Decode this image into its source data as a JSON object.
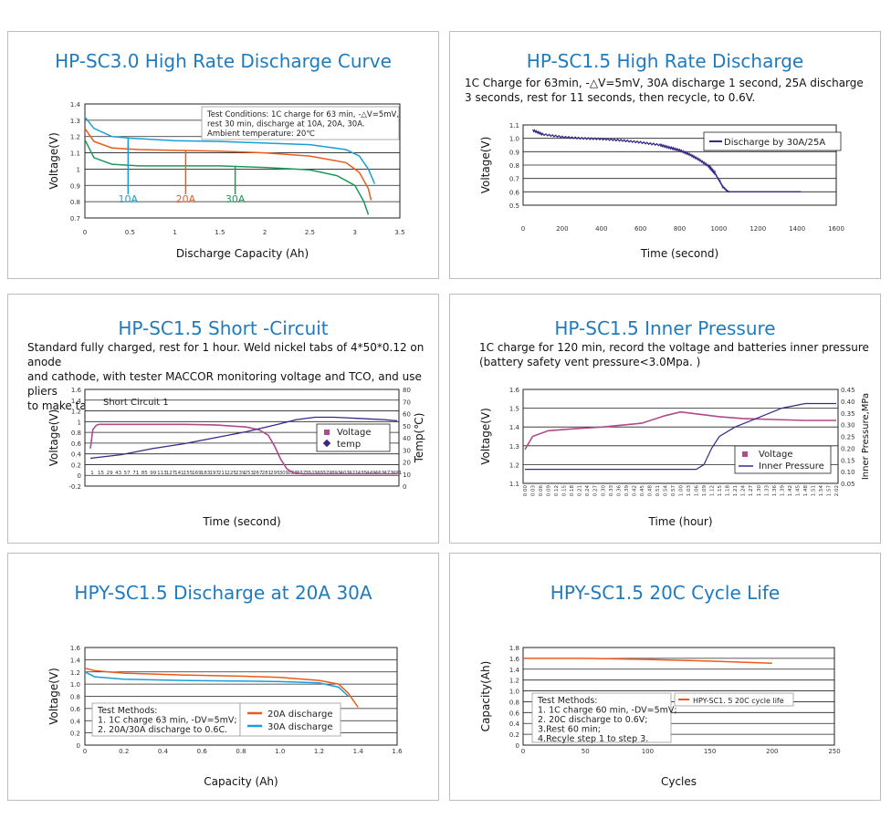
{
  "panels": [
    {
      "title": "HP-SC3.0 High Rate Discharge Curve",
      "description": ""
    },
    {
      "title": "HP-SC1.5 High Rate Discharge",
      "description": "1C Charge for 63min, -△V=5mV, 30A discharge 1 second, 25A discharge\n 3 seconds, rest for 11 seconds, then recycle, to 0.6V."
    },
    {
      "title": "HP-SC1.5 Short -Circuit",
      "description": "Standard fully charged, rest for 1 hour. Weld nickel tabs of 4*50*0.12 on anode\nand cathode, with tester MACCOR monitoring voltage and TCO, and use pliers\nto make  tab locked,shortcircuit the battery."
    },
    {
      "title": "HP-SC1.5 Inner Pressure",
      "description": "1C charge for 120 min, record the voltage and batteries inner pressure\n(battery safety vent pressure<3.0Mpa. )"
    },
    {
      "title": "HPY-SC1.5 Discharge at 20A 30A",
      "description": ""
    },
    {
      "title": "HPY-SC1.5 20C Cycle Life",
      "description": ""
    }
  ],
  "chart_data": [
    {
      "type": "line",
      "xlabel": "Discharge Capacity (Ah)",
      "ylabel": "Voltage(V)",
      "xlim": [
        0,
        3.5
      ],
      "ylim": [
        0.7,
        1.4
      ],
      "xticks": [
        "0",
        "0.5",
        "1",
        "1.5",
        "2",
        "2.5",
        "3",
        "3.5"
      ],
      "yticks": [
        "0.7",
        "0.8",
        "0.9",
        "1",
        "1.1",
        "1.2",
        "1.3",
        "1.4"
      ],
      "annotation": "Test Conditions: 1C charge for 63 min, -△V=5mV,\nrest 30 min, discharge at 10A, 20A, 30A.\nAmbient temperature: 20℃",
      "colors": {
        "10A": "#1a9ed8",
        "20A": "#ea5b1a",
        "30A": "#1a9a5a"
      },
      "series": [
        {
          "name": "10A",
          "x": [
            0,
            0.1,
            0.3,
            0.5,
            1.0,
            1.5,
            2.0,
            2.5,
            2.9,
            3.05,
            3.15,
            3.22
          ],
          "y": [
            1.32,
            1.25,
            1.2,
            1.19,
            1.175,
            1.17,
            1.16,
            1.15,
            1.12,
            1.08,
            1.0,
            0.91
          ]
        },
        {
          "name": "20A",
          "x": [
            0,
            0.1,
            0.3,
            0.6,
            1.0,
            1.5,
            2.0,
            2.5,
            2.9,
            3.05,
            3.15,
            3.18
          ],
          "y": [
            1.25,
            1.17,
            1.13,
            1.12,
            1.115,
            1.11,
            1.1,
            1.08,
            1.04,
            0.98,
            0.88,
            0.81
          ]
        },
        {
          "name": "30A",
          "x": [
            0,
            0.1,
            0.3,
            0.6,
            1.0,
            1.5,
            2.0,
            2.5,
            2.8,
            3.0,
            3.1,
            3.15
          ],
          "y": [
            1.18,
            1.07,
            1.03,
            1.02,
            1.02,
            1.02,
            1.01,
            0.995,
            0.96,
            0.9,
            0.8,
            0.72
          ]
        }
      ],
      "series_labels": [
        "10A",
        "20A",
        "30A"
      ]
    },
    {
      "type": "line",
      "xlabel": "Time (second)",
      "ylabel": "Voltage(V)",
      "xlim": [
        0,
        1600
      ],
      "ylim": [
        0.5,
        1.1
      ],
      "xticks": [
        "0",
        "200",
        "400",
        "600",
        "800",
        "1000",
        "1200",
        "1400",
        "1600"
      ],
      "yticks": [
        "0.5",
        "0.6",
        "0.7",
        "0.8",
        "0.9",
        "1.0",
        "1.1"
      ],
      "colors": {
        "line": "#3a2785"
      },
      "series": [
        {
          "name": "Discharge by 30A/25A",
          "x": [
            50,
            100,
            200,
            300,
            400,
            500,
            600,
            700,
            750,
            800,
            850,
            900,
            950,
            980,
            1000,
            1020,
            1040,
            1050,
            1100,
            1200,
            1300,
            1420
          ],
          "y": [
            1.06,
            1.03,
            1.01,
            1.0,
            0.995,
            0.985,
            0.97,
            0.95,
            0.93,
            0.91,
            0.88,
            0.84,
            0.79,
            0.74,
            0.69,
            0.64,
            0.61,
            0.6,
            0.6,
            0.6,
            0.6,
            0.6
          ]
        }
      ]
    },
    {
      "type": "line",
      "xlabel": "Time (second)",
      "ylabel": "Voltage(V)",
      "ylabel2": "Temp(℃)",
      "annotation": "Short  Circuit  1",
      "ylim": [
        -0.2,
        1.6
      ],
      "ylim2": [
        0,
        80
      ],
      "yticks": [
        "-0.2",
        "0",
        "0.2",
        "0.4",
        "0.6",
        "0.8",
        "1",
        "1.2",
        "1.4",
        "1.6"
      ],
      "yticks2": [
        "0",
        "10",
        "20",
        "30",
        "40",
        "50",
        "60",
        "70",
        "80"
      ],
      "xticks": [
        "1",
        "15",
        "29",
        "43",
        "57",
        "71",
        "85",
        "99",
        "113",
        "127",
        "141",
        "155",
        "169",
        "183",
        "197",
        "211",
        "225",
        "239",
        "253",
        "267",
        "281",
        "295",
        "309",
        "323",
        "337",
        "351",
        "365",
        "379",
        "393",
        "407",
        "421",
        "435",
        "449",
        "463",
        "477",
        "491"
      ],
      "colors": {
        "Voltage": "#b04a8a",
        "temp": "#3a2785"
      },
      "series": [
        {
          "name": "Voltage",
          "x": [
            1,
            5,
            10,
            15,
            50,
            100,
            150,
            200,
            250,
            270,
            285,
            295,
            305,
            315,
            325,
            340,
            360,
            400,
            450,
            491
          ],
          "y": [
            0.5,
            0.85,
            0.93,
            0.95,
            0.95,
            0.95,
            0.95,
            0.94,
            0.9,
            0.85,
            0.75,
            0.55,
            0.3,
            0.12,
            0.05,
            0.03,
            0.03,
            0.03,
            0.03,
            0.03
          ]
        },
        {
          "name": "temp",
          "x": [
            1,
            50,
            100,
            150,
            200,
            250,
            300,
            330,
            360,
            390,
            430,
            470,
            491
          ],
          "y": [
            23,
            26,
            31,
            35,
            40,
            45,
            51,
            55,
            57,
            57,
            56,
            55,
            54
          ]
        }
      ]
    },
    {
      "type": "line",
      "xlabel": "Time (hour)",
      "ylabel": "Voltage(V)",
      "ylabel2": "Inner Pressure,MPa",
      "ylim": [
        1.1,
        1.6
      ],
      "ylim2": [
        0.05,
        0.45
      ],
      "yticks": [
        "1.1",
        "1.2",
        "1.3",
        "1.4",
        "1.5",
        "1.6"
      ],
      "yticks2": [
        "0.05",
        "0.10",
        "0.15",
        "0.20",
        "0.25",
        "0.30",
        "0.35",
        "0.40",
        "0.45"
      ],
      "xticks": [
        "0.00",
        "0.03",
        "0.06",
        "0.09",
        "0.12",
        "0.15",
        "0.18",
        "0.21",
        "0.24",
        "0.27",
        "0.30",
        "0.33",
        "0.36",
        "0.39",
        "0.42",
        "0.45",
        "0.48",
        "0.51",
        "0.54",
        "0.57",
        "1.00",
        "1.03",
        "1.06",
        "1.09",
        "1.12",
        "1.15",
        "1.18",
        "1.21",
        "1.24",
        "1.27",
        "1.30",
        "1.33",
        "1.36",
        "1.39",
        "1.42",
        "1.45",
        "1.48",
        "1.51",
        "1.54",
        "1.57",
        "2.02"
      ],
      "colors": {
        "Voltage": "#b04a8a",
        "Inner Pressure": "#3a2785"
      },
      "series": [
        {
          "name": "Voltage",
          "x": [
            0,
            1,
            3,
            6,
            10,
            15,
            18,
            20,
            22,
            25,
            28,
            32,
            36,
            40
          ],
          "y": [
            1.28,
            1.35,
            1.38,
            1.39,
            1.4,
            1.42,
            1.46,
            1.48,
            1.47,
            1.455,
            1.445,
            1.44,
            1.435,
            1.435
          ]
        },
        {
          "name": "Inner Pressure",
          "x": [
            0,
            5,
            10,
            15,
            20,
            22,
            23,
            24,
            25,
            27,
            30,
            33,
            36,
            38,
            40
          ],
          "y": [
            0.11,
            0.11,
            0.11,
            0.11,
            0.11,
            0.11,
            0.13,
            0.2,
            0.25,
            0.29,
            0.33,
            0.37,
            0.39,
            0.39,
            0.39
          ]
        }
      ]
    },
    {
      "type": "line",
      "xlabel": "Capacity (Ah)",
      "ylabel": "Voltage(V)",
      "xlim": [
        0,
        1.6
      ],
      "ylim": [
        0,
        1.6
      ],
      "xticks": [
        "0",
        "0.2",
        "0.4",
        "0.6",
        "0.8",
        "1.0",
        "1.2",
        "1.4",
        "1.6"
      ],
      "yticks": [
        "0",
        "0.2",
        "0.4",
        "0.6",
        "0.8",
        "1.0",
        "1.2",
        "1.4",
        "1.6"
      ],
      "annotation": "Test Methods:\n1. 1C charge 63 min, -DV=5mV;\n2. 20A/30A discharge to 0.6C.",
      "colors": {
        "20A discharge": "#ea5b1a",
        "30A discharge": "#1a9ed8"
      },
      "series": [
        {
          "name": "20A discharge",
          "x": [
            0,
            0.05,
            0.2,
            0.5,
            0.8,
            1.0,
            1.2,
            1.3,
            1.35,
            1.4
          ],
          "y": [
            1.26,
            1.22,
            1.18,
            1.15,
            1.13,
            1.11,
            1.06,
            1.0,
            0.85,
            0.62
          ]
        },
        {
          "name": "30A discharge",
          "x": [
            0,
            0.05,
            0.2,
            0.5,
            0.8,
            1.0,
            1.2,
            1.3,
            1.35
          ],
          "y": [
            1.2,
            1.12,
            1.08,
            1.06,
            1.05,
            1.04,
            1.02,
            0.95,
            0.8
          ]
        }
      ]
    },
    {
      "type": "line",
      "xlabel": "Cycles",
      "ylabel": "Capacity(Ah)",
      "xlim": [
        0,
        250
      ],
      "ylim": [
        0,
        1.8
      ],
      "xticks": [
        "0",
        "50",
        "100",
        "150",
        "200",
        "250"
      ],
      "yticks": [
        "0",
        "0.2",
        "0.4",
        "0.6",
        "0.8",
        "1.0",
        "1.2",
        "1.4",
        "1.6",
        "1.8"
      ],
      "annotation": "Test Methods:\n1. 1C charge 60 min, -DV=5mV;\n2. 20C discharge  to 0.6V;\n3.Rest 60 min;\n4.Recyle step 1 to step 3.",
      "colors": {
        "line": "#ea5b1a"
      },
      "series": [
        {
          "name": "HPY-SC1. 5 20C cycle life",
          "x": [
            0,
            50,
            100,
            150,
            200
          ],
          "y": [
            1.6,
            1.6,
            1.58,
            1.55,
            1.51
          ]
        }
      ]
    }
  ]
}
